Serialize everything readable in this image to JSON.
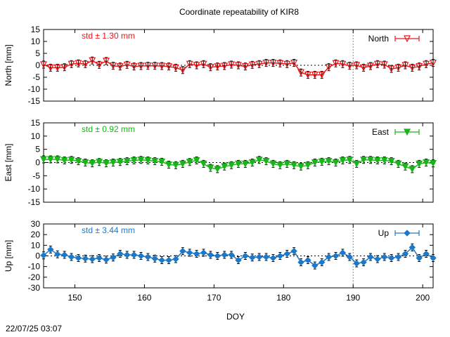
{
  "page": {
    "title": "Coordinate repeatability of KIR8",
    "timestamp": "22/07/25 03:07"
  },
  "chart_data": {
    "type": "line",
    "title": "Coordinate repeatability of KIR8",
    "xlabel": "DOY",
    "xlim": [
      145.5,
      201.5
    ],
    "xticks": [
      150,
      160,
      170,
      180,
      190,
      200
    ],
    "vline_doy": 190,
    "x": [
      145.5,
      146.5,
      147.5,
      148.5,
      149.5,
      150.5,
      151.5,
      152.5,
      153.5,
      154.5,
      155.5,
      156.5,
      157.5,
      158.5,
      159.5,
      160.5,
      161.5,
      162.5,
      163.5,
      164.5,
      165.5,
      166.5,
      167.5,
      168.5,
      169.5,
      170.5,
      171.5,
      172.5,
      173.5,
      174.5,
      175.5,
      176.5,
      177.5,
      178.5,
      179.5,
      180.5,
      181.5,
      182.5,
      183.5,
      184.5,
      185.5,
      186.5,
      187.5,
      188.5,
      189.5,
      190.5,
      191.5,
      192.5,
      193.5,
      194.5,
      195.5,
      196.5,
      197.5,
      198.5,
      199.5,
      200.5,
      201.5
    ],
    "panels": [
      {
        "name": "North",
        "ylabel": "North [mm]",
        "ylim": [
          -15,
          15
        ],
        "yticks": [
          -15,
          -10,
          -5,
          0,
          5,
          10,
          15
        ],
        "legend": "North",
        "legend_position": "top-right",
        "std_label": "std ± 1.30 mm",
        "color": "#e8181c",
        "marker": "triangle-down-open",
        "values": [
          0.3,
          -1.0,
          -1.0,
          -0.8,
          0.5,
          0.8,
          0.5,
          2.0,
          0.2,
          1.8,
          -0.2,
          -0.5,
          0.2,
          -0.5,
          -0.3,
          -0.2,
          -0.2,
          -0.3,
          -0.5,
          -1.0,
          -2.0,
          0.5,
          0.0,
          0.5,
          -0.8,
          -0.5,
          -0.3,
          0.3,
          0.0,
          -0.5,
          0.2,
          0.5,
          1.0,
          1.0,
          0.8,
          0.5,
          1.0,
          -3.0,
          -4.0,
          -4.0,
          -4.0,
          -0.8,
          0.8,
          0.5,
          -0.2,
          0.0,
          -1.0,
          -0.3,
          0.5,
          0.3,
          -1.5,
          -1.0,
          0.0,
          -1.0,
          -0.5,
          0.5,
          1.0
        ]
      },
      {
        "name": "East",
        "ylabel": "East [mm]",
        "ylim": [
          -15,
          15
        ],
        "yticks": [
          -15,
          -10,
          -5,
          0,
          5,
          10,
          15
        ],
        "legend": "East",
        "legend_position": "top-right",
        "std_label": "std ± 0.92 mm",
        "color": "#19b419",
        "marker": "triangle-down-filled",
        "values": [
          1.2,
          1.2,
          1.2,
          0.8,
          1.0,
          0.5,
          0.0,
          -0.3,
          0.2,
          -0.3,
          0.0,
          0.2,
          0.5,
          0.8,
          1.0,
          0.8,
          0.5,
          0.3,
          -0.8,
          -1.0,
          -0.5,
          0.2,
          0.8,
          -0.5,
          -2.0,
          -2.5,
          -1.5,
          -1.0,
          -0.5,
          -0.5,
          0.0,
          1.0,
          0.5,
          -0.5,
          -1.0,
          -0.5,
          -1.0,
          -1.5,
          -1.0,
          0.0,
          0.3,
          0.5,
          0.0,
          0.8,
          1.0,
          -0.5,
          1.0,
          1.0,
          0.8,
          0.8,
          0.5,
          -0.5,
          -1.5,
          -2.5,
          -0.5,
          0.0,
          -0.3
        ]
      },
      {
        "name": "Up",
        "ylabel": "Up [mm]",
        "ylim": [
          -30,
          30
        ],
        "yticks": [
          -30,
          -20,
          -10,
          0,
          10,
          20,
          30
        ],
        "legend": "Up",
        "legend_position": "top-right",
        "std_label": "std ± 3.44 mm",
        "color": "#1e78c8",
        "marker": "diamond-filled",
        "values": [
          0.5,
          6.0,
          1.5,
          1.0,
          -1.0,
          -2.0,
          -2.5,
          -3.0,
          -2.0,
          -3.5,
          -1.5,
          2.0,
          1.0,
          1.0,
          0.0,
          -1.0,
          -2.5,
          -4.0,
          -4.0,
          -3.0,
          4.5,
          3.0,
          2.0,
          3.0,
          1.0,
          0.0,
          1.0,
          1.0,
          -4.0,
          0.0,
          -1.5,
          -1.0,
          -1.0,
          -2.0,
          0.0,
          2.0,
          4.5,
          -6.0,
          -4.0,
          -9.0,
          -6.0,
          -1.0,
          0.0,
          3.0,
          -1.0,
          -7.0,
          -6.0,
          -1.0,
          -3.0,
          -1.0,
          -2.0,
          -1.0,
          2.0,
          8.0,
          -2.0,
          2.0,
          -2.0
        ]
      }
    ]
  }
}
